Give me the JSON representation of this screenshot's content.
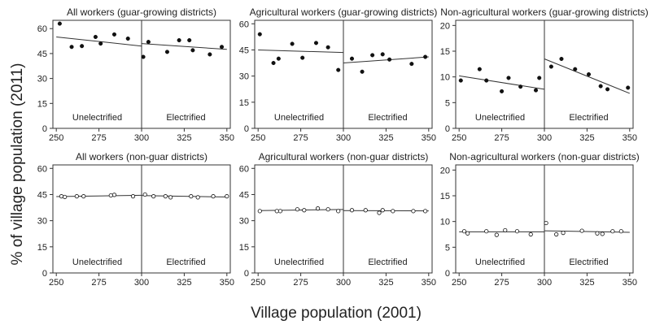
{
  "figure": {
    "ylabel": "% of village population (2011)",
    "xlabel": "Village population (2001)",
    "left_label": "Unelectrified",
    "right_label": "Electrified"
  },
  "chart_data": [
    {
      "type": "scatter",
      "title": "All workers (guar-growing districts)",
      "xlim": [
        248,
        352
      ],
      "ylim": [
        0,
        65
      ],
      "xticks": [
        250,
        275,
        300,
        325,
        350
      ],
      "yticks": [
        0,
        15,
        30,
        45,
        60
      ],
      "cutoff": 300,
      "marker": "filled",
      "points": [
        [
          252,
          63
        ],
        [
          259,
          49
        ],
        [
          265,
          49.5
        ],
        [
          273,
          55
        ],
        [
          276,
          51
        ],
        [
          284,
          56.5
        ],
        [
          292,
          54
        ],
        [
          301,
          43
        ],
        [
          304,
          52
        ],
        [
          315,
          46
        ],
        [
          322,
          53
        ],
        [
          328,
          53
        ],
        [
          330,
          47
        ],
        [
          340,
          44.5
        ],
        [
          347,
          49
        ]
      ],
      "fits": [
        [
          [
            250,
            55
          ],
          [
            300,
            49.5
          ]
        ],
        [
          [
            300,
            51
          ],
          [
            350,
            47.5
          ]
        ]
      ]
    },
    {
      "type": "scatter",
      "title": "Agricultural workers (guar-growing districts)",
      "xlim": [
        248,
        352
      ],
      "ylim": [
        0,
        62
      ],
      "xticks": [
        250,
        275,
        300,
        325,
        350
      ],
      "yticks": [
        0,
        15,
        30,
        45,
        60
      ],
      "cutoff": 300,
      "marker": "filled",
      "points": [
        [
          251,
          54
        ],
        [
          259,
          37.5
        ],
        [
          262,
          40
        ],
        [
          270,
          48.5
        ],
        [
          276,
          40.5
        ],
        [
          284,
          49
        ],
        [
          291,
          46.5
        ],
        [
          297,
          33.5
        ],
        [
          305,
          40
        ],
        [
          311,
          32.5
        ],
        [
          317,
          42
        ],
        [
          323,
          42.5
        ],
        [
          327,
          39.5
        ],
        [
          340,
          37
        ],
        [
          348,
          41
        ]
      ],
      "fits": [
        [
          [
            250,
            45
          ],
          [
            300,
            43.5
          ]
        ],
        [
          [
            300,
            37.5
          ],
          [
            350,
            41
          ]
        ]
      ]
    },
    {
      "type": "scatter",
      "title": "Non-agricultural workers (guar-growing districts)",
      "xlim": [
        248,
        352
      ],
      "ylim": [
        0,
        21
      ],
      "xticks": [
        250,
        275,
        300,
        325,
        350
      ],
      "yticks": [
        0,
        5,
        10,
        15,
        20
      ],
      "cutoff": 300,
      "marker": "filled",
      "points": [
        [
          251,
          9.3
        ],
        [
          262,
          11.5
        ],
        [
          266,
          9.3
        ],
        [
          275,
          7.2
        ],
        [
          279,
          9.8
        ],
        [
          286,
          8.1
        ],
        [
          295,
          7.4
        ],
        [
          297,
          9.8
        ],
        [
          304,
          12
        ],
        [
          310,
          13.5
        ],
        [
          318,
          11.5
        ],
        [
          326,
          10.5
        ],
        [
          333,
          8.2
        ],
        [
          337,
          7.6
        ],
        [
          349,
          7.9
        ]
      ],
      "fits": [
        [
          [
            250,
            10.2
          ],
          [
            300,
            7.6
          ]
        ],
        [
          [
            300,
            13.5
          ],
          [
            350,
            6.8
          ]
        ]
      ]
    },
    {
      "type": "scatter",
      "title": "All workers (non-guar districts)",
      "xlim": [
        248,
        352
      ],
      "ylim": [
        0,
        62
      ],
      "xticks": [
        250,
        275,
        300,
        325,
        350
      ],
      "yticks": [
        0,
        15,
        30,
        45,
        60
      ],
      "cutoff": 300,
      "marker": "hollow",
      "points": [
        [
          253,
          44
        ],
        [
          255,
          43.6
        ],
        [
          262,
          44
        ],
        [
          266,
          44
        ],
        [
          282,
          44.5
        ],
        [
          284,
          44.8
        ],
        [
          295,
          44
        ],
        [
          302,
          45
        ],
        [
          307,
          44
        ],
        [
          314,
          44
        ],
        [
          317,
          43.4
        ],
        [
          329,
          44
        ],
        [
          333,
          43.4
        ],
        [
          342,
          44
        ],
        [
          350,
          44
        ]
      ],
      "fits": [
        [
          [
            250,
            43.8
          ],
          [
            300,
            44.6
          ]
        ],
        [
          [
            300,
            44.4
          ],
          [
            350,
            43.6
          ]
        ]
      ]
    },
    {
      "type": "scatter",
      "title": "Agricultural workers (non-guar districts)",
      "xlim": [
        248,
        352
      ],
      "ylim": [
        0,
        62
      ],
      "xticks": [
        250,
        275,
        300,
        325,
        350
      ],
      "yticks": [
        0,
        15,
        30,
        45,
        60
      ],
      "cutoff": 300,
      "marker": "hollow",
      "points": [
        [
          251,
          35.5
        ],
        [
          261,
          35.5
        ],
        [
          263,
          35.5
        ],
        [
          273,
          36.5
        ],
        [
          277,
          36
        ],
        [
          285,
          37
        ],
        [
          291,
          36.5
        ],
        [
          297,
          35.5
        ],
        [
          305,
          36
        ],
        [
          313,
          36
        ],
        [
          321,
          34.5
        ],
        [
          323,
          36
        ],
        [
          329,
          35.5
        ],
        [
          341,
          35.5
        ],
        [
          348,
          35.5
        ]
      ],
      "fits": [
        [
          [
            250,
            35.8
          ],
          [
            300,
            36.4
          ]
        ],
        [
          [
            300,
            35.8
          ],
          [
            350,
            35.6
          ]
        ]
      ]
    },
    {
      "type": "scatter",
      "title": "Non-agricultural workers (non-guar districts)",
      "xlim": [
        248,
        352
      ],
      "ylim": [
        0,
        21
      ],
      "xticks": [
        250,
        275,
        300,
        325,
        350
      ],
      "yticks": [
        0,
        5,
        10,
        15,
        20
      ],
      "cutoff": 300,
      "marker": "hollow",
      "points": [
        [
          253,
          8.1
        ],
        [
          255,
          7.7
        ],
        [
          266,
          8.1
        ],
        [
          272,
          7.4
        ],
        [
          277,
          8.3
        ],
        [
          284,
          8.1
        ],
        [
          292,
          7.5
        ],
        [
          301,
          9.7
        ],
        [
          307,
          7.5
        ],
        [
          311,
          7.8
        ],
        [
          322,
          8.2
        ],
        [
          331,
          7.7
        ],
        [
          334,
          7.6
        ],
        [
          340,
          8.1
        ],
        [
          345,
          8.1
        ]
      ],
      "fits": [
        [
          [
            250,
            8
          ],
          [
            300,
            8
          ]
        ],
        [
          [
            300,
            8.2
          ],
          [
            350,
            7.9
          ]
        ]
      ]
    }
  ]
}
